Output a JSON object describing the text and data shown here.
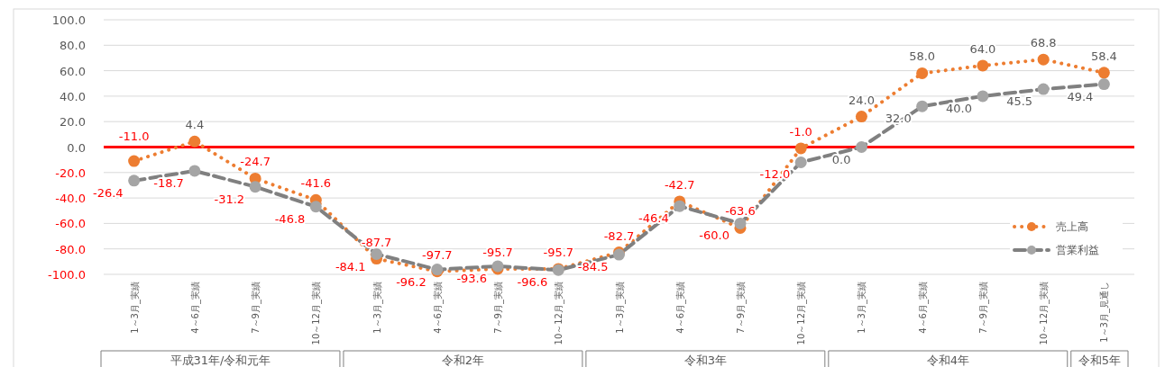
{
  "chart_data": {
    "type": "line",
    "categories": [
      "1～3月_実績",
      "4～6月_実績",
      "7～9月_実績",
      "10～12月_実績",
      "1～3月_実績",
      "4～6月_実績",
      "7～9月_実績",
      "10～12月_実績",
      "1～3月_実績",
      "4～6月_実績",
      "7～9月_実績",
      "10～12月_実績",
      "1～3月_実績",
      "4～6月_実績",
      "7～9月_実績",
      "10～12月_実績",
      "1～3月_見通し"
    ],
    "series": [
      {
        "name": "売上高",
        "color": "#ed7d31",
        "line_style": "dotted",
        "values": [
          -11.0,
          4.4,
          -24.7,
          -41.6,
          -87.7,
          -97.7,
          -95.7,
          -95.7,
          -82.7,
          -42.7,
          -63.6,
          -1.0,
          24.0,
          58.0,
          64.0,
          68.8,
          58.4
        ],
        "value_labels": [
          "-11.0",
          "4.4",
          "-24.7",
          "-41.6",
          "-87.7",
          "-97.7",
          "-95.7",
          "-95.7",
          "-82.7",
          "-42.7",
          "-63.6",
          "-1.0",
          "24.0",
          "58.0",
          "64.0",
          "68.8",
          "58.4"
        ]
      },
      {
        "name": "営業利益",
        "color": "#a5a5a5",
        "line_style": "dashed",
        "values": [
          -26.4,
          -18.7,
          -31.2,
          -46.8,
          -84.1,
          -96.2,
          -93.6,
          -96.6,
          -84.5,
          -46.4,
          -60.0,
          -12.0,
          0.0,
          32.0,
          40.0,
          45.5,
          49.4
        ],
        "value_labels": [
          "-26.4",
          "-18.7",
          "-31.2",
          "-46.8",
          "-84.1",
          "-96.2",
          "-93.6",
          "-96.6",
          "-84.5",
          "-46.4",
          "-60.0",
          "-12.0",
          "0.0",
          "32.0",
          "40.0",
          "45.5",
          "49.4"
        ]
      }
    ],
    "ylim": [
      -100,
      100
    ],
    "yticks": [
      {
        "value": -100,
        "label": "-100.0"
      },
      {
        "value": -80,
        "label": "-80.0"
      },
      {
        "value": -60,
        "label": "-60.0"
      },
      {
        "value": -40,
        "label": "-40.0"
      },
      {
        "value": -20,
        "label": "-20.0"
      },
      {
        "value": 0,
        "label": "0.0"
      },
      {
        "value": 20,
        "label": "20.0"
      },
      {
        "value": 40,
        "label": "40.0"
      },
      {
        "value": 60,
        "label": "60.0"
      },
      {
        "value": 80,
        "label": "80.0"
      },
      {
        "value": 100,
        "label": "100.0"
      }
    ],
    "ref_lines": [
      {
        "axis": "y",
        "value": 0,
        "color": "#ff0000"
      }
    ],
    "annotations": [
      "平成31年/令和元年",
      "令和2年",
      "令和3年",
      "令和4年",
      "令和5年"
    ],
    "grid": "y",
    "legend": "bottom right",
    "marker": "circle"
  }
}
